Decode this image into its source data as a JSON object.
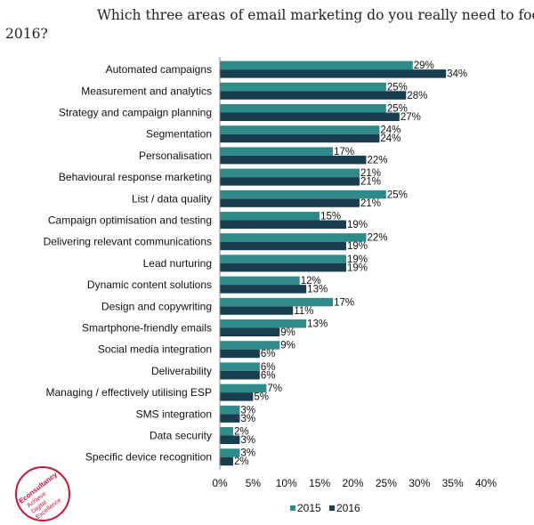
{
  "chart_data": {
    "type": "bar",
    "orientation": "horizontal",
    "title_line1": "Which three areas of email marketing do you really need to focus on in",
    "title_line2": "2016?",
    "categories": [
      "Automated campaigns",
      "Measurement and analytics",
      "Strategy and campaign planning",
      "Segmentation",
      "Personalisation",
      "Behavioural response marketing",
      "List / data quality",
      "Campaign optimisation and testing",
      "Delivering relevant communications",
      "Lead nurturing",
      "Dynamic content solutions",
      "Design and copywriting",
      "Smartphone-friendly emails",
      "Social media integration",
      "Deliverability",
      "Managing / effectively utilising ESP",
      "SMS integration",
      "Data security",
      "Specific device recognition"
    ],
    "series": [
      {
        "name": "2015",
        "color": "#2e8b88",
        "values": [
          29,
          25,
          25,
          24,
          17,
          21,
          25,
          15,
          22,
          19,
          12,
          17,
          13,
          9,
          6,
          7,
          3,
          2,
          3
        ]
      },
      {
        "name": "2016",
        "color": "#173f50",
        "values": [
          34,
          28,
          27,
          24,
          22,
          21,
          21,
          19,
          19,
          19,
          13,
          11,
          9,
          6,
          6,
          5,
          3,
          3,
          2
        ]
      }
    ],
    "xlim": [
      0,
      40
    ],
    "xticks": [
      "0%",
      "5%",
      "10%",
      "15%",
      "20%",
      "25%",
      "30%",
      "35%",
      "40%"
    ],
    "legend_position": "bottom",
    "grid": false
  },
  "logo": {
    "line1": "Econsultancy",
    "line2": "Achieve",
    "line3": "Digital",
    "line4": "Excellence"
  }
}
